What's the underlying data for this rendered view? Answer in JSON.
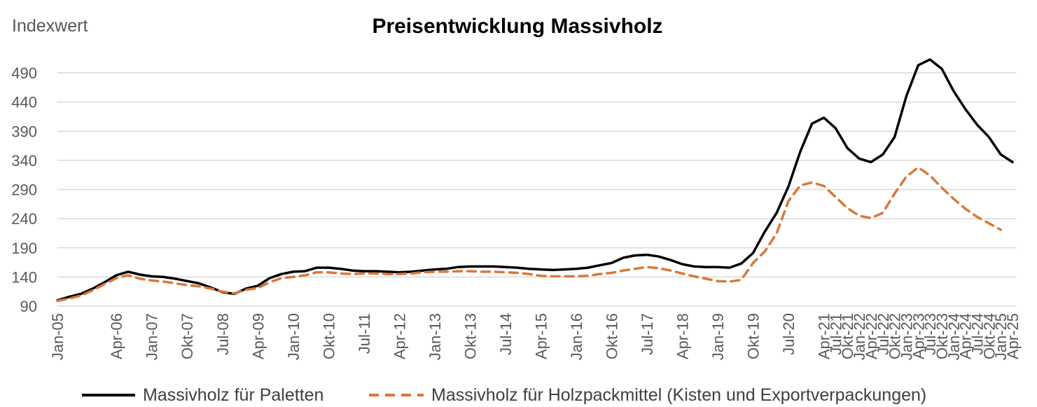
{
  "chart_data": {
    "type": "line",
    "title": "Preisentwicklung Massivholz",
    "ylabel": "Indexwert",
    "xlabel": "",
    "ylim": [
      90,
      490
    ],
    "yticks": [
      90,
      140,
      190,
      240,
      290,
      340,
      390,
      440,
      490
    ],
    "grid": true,
    "legend": "bottom",
    "x_tick_labels": [
      "Jan-05",
      "Apr-06",
      "Jan-07",
      "Okt-07",
      "Jul-08",
      "Apr-09",
      "Jan-10",
      "Okt-10",
      "Jul-11",
      "Apr-12",
      "Jan-13",
      "Okt-13",
      "Jul-14",
      "Apr-15",
      "Jan-16",
      "Okt-16",
      "Jul-17",
      "Apr-18",
      "Jan-19",
      "Okt-19",
      "Jul-20",
      "Apr-21",
      "Jul-21",
      "Okt-21",
      "Jan-22",
      "Apr-22",
      "Jul-22",
      "Okt-22",
      "Jan-23",
      "Apr-23",
      "Jul-23",
      "Okt-23",
      "Jan-24",
      "Apr-24",
      "Jul-24",
      "Okt-24",
      "Jan-25",
      "Apr-25"
    ],
    "series": [
      {
        "name": "Massivholz für Paletten",
        "color": "#000000",
        "style": "solid",
        "points": [
          [
            "Jan-05",
            100
          ],
          [
            "Apr-05",
            106
          ],
          [
            "Jul-05",
            111
          ],
          [
            "Okt-05",
            120
          ],
          [
            "Jan-06",
            131
          ],
          [
            "Apr-06",
            143
          ],
          [
            "Jul-06",
            149
          ],
          [
            "Okt-06",
            144
          ],
          [
            "Jan-07",
            141
          ],
          [
            "Apr-07",
            140
          ],
          [
            "Jul-07",
            137
          ],
          [
            "Okt-07",
            133
          ],
          [
            "Jan-08",
            129
          ],
          [
            "Apr-08",
            122
          ],
          [
            "Jul-08",
            114
          ],
          [
            "Okt-08",
            111
          ],
          [
            "Jan-09",
            120
          ],
          [
            "Apr-09",
            125
          ],
          [
            "Jul-09",
            138
          ],
          [
            "Okt-09",
            145
          ],
          [
            "Jan-10",
            149
          ],
          [
            "Apr-10",
            150
          ],
          [
            "Jul-10",
            156
          ],
          [
            "Okt-10",
            156
          ],
          [
            "Jan-11",
            154
          ],
          [
            "Apr-11",
            151
          ],
          [
            "Jul-11",
            150
          ],
          [
            "Okt-11",
            150
          ],
          [
            "Jan-12",
            149
          ],
          [
            "Apr-12",
            148
          ],
          [
            "Jul-12",
            149
          ],
          [
            "Okt-12",
            151
          ],
          [
            "Jan-13",
            153
          ],
          [
            "Apr-13",
            154
          ],
          [
            "Jul-13",
            157
          ],
          [
            "Okt-13",
            158
          ],
          [
            "Jan-14",
            158
          ],
          [
            "Apr-14",
            158
          ],
          [
            "Jul-14",
            157
          ],
          [
            "Okt-14",
            156
          ],
          [
            "Jan-15",
            154
          ],
          [
            "Apr-15",
            153
          ],
          [
            "Jul-15",
            152
          ],
          [
            "Okt-15",
            153
          ],
          [
            "Jan-16",
            154
          ],
          [
            "Apr-16",
            156
          ],
          [
            "Jul-16",
            160
          ],
          [
            "Okt-16",
            164
          ],
          [
            "Jan-17",
            173
          ],
          [
            "Apr-17",
            177
          ],
          [
            "Jul-17",
            178
          ],
          [
            "Okt-17",
            175
          ],
          [
            "Jan-18",
            169
          ],
          [
            "Apr-18",
            162
          ],
          [
            "Jul-18",
            158
          ],
          [
            "Okt-18",
            157
          ],
          [
            "Jan-19",
            157
          ],
          [
            "Apr-19",
            156
          ],
          [
            "Jul-19",
            163
          ],
          [
            "Okt-19",
            181
          ],
          [
            "Jan-20",
            218
          ],
          [
            "Apr-20",
            250
          ],
          [
            "Jul-20",
            295
          ],
          [
            "Okt-20",
            355
          ],
          [
            "Jan-21",
            403
          ],
          [
            "Apr-21",
            413
          ],
          [
            "Jul-21",
            395
          ],
          [
            "Okt-21",
            361
          ],
          [
            "Jan-22",
            343
          ],
          [
            "Apr-22",
            337
          ],
          [
            "Jul-22",
            350
          ],
          [
            "Okt-22",
            380
          ],
          [
            "Jan-23",
            450
          ],
          [
            "Apr-23",
            503
          ],
          [
            "Jul-23",
            513
          ],
          [
            "Okt-23",
            497
          ],
          [
            "Jan-24",
            459
          ],
          [
            "Apr-24",
            428
          ],
          [
            "Jul-24",
            401
          ],
          [
            "Okt-24",
            380
          ],
          [
            "Jan-25",
            350
          ],
          [
            "Apr-25",
            337
          ]
        ]
      },
      {
        "name": "Massivholz für Holzpackmittel (Kisten und Exportverpackungen)",
        "color": "#d9783a",
        "style": "dashed",
        "points": [
          [
            "Jan-05",
            99
          ],
          [
            "Apr-05",
            103
          ],
          [
            "Jul-05",
            108
          ],
          [
            "Okt-05",
            117
          ],
          [
            "Jan-06",
            128
          ],
          [
            "Apr-06",
            138
          ],
          [
            "Jul-06",
            143
          ],
          [
            "Okt-06",
            137
          ],
          [
            "Jan-07",
            134
          ],
          [
            "Apr-07",
            132
          ],
          [
            "Jul-07",
            129
          ],
          [
            "Okt-07",
            126
          ],
          [
            "Jan-08",
            124
          ],
          [
            "Apr-08",
            120
          ],
          [
            "Jul-08",
            115
          ],
          [
            "Okt-08",
            112
          ],
          [
            "Jan-09",
            118
          ],
          [
            "Apr-09",
            121
          ],
          [
            "Jul-09",
            131
          ],
          [
            "Okt-09",
            138
          ],
          [
            "Jan-10",
            140
          ],
          [
            "Apr-10",
            143
          ],
          [
            "Jul-10",
            148
          ],
          [
            "Okt-10",
            148
          ],
          [
            "Jan-11",
            146
          ],
          [
            "Apr-11",
            145
          ],
          [
            "Jul-11",
            146
          ],
          [
            "Okt-11",
            146
          ],
          [
            "Jan-12",
            145
          ],
          [
            "Apr-12",
            145
          ],
          [
            "Jul-12",
            146
          ],
          [
            "Okt-12",
            148
          ],
          [
            "Jan-13",
            149
          ],
          [
            "Apr-13",
            149
          ],
          [
            "Jul-13",
            150
          ],
          [
            "Okt-13",
            150
          ],
          [
            "Jan-14",
            149
          ],
          [
            "Apr-14",
            149
          ],
          [
            "Jul-14",
            148
          ],
          [
            "Okt-14",
            147
          ],
          [
            "Jan-15",
            145
          ],
          [
            "Apr-15",
            142
          ],
          [
            "Jul-15",
            141
          ],
          [
            "Okt-15",
            141
          ],
          [
            "Jan-16",
            141
          ],
          [
            "Apr-16",
            142
          ],
          [
            "Jul-16",
            145
          ],
          [
            "Okt-16",
            147
          ],
          [
            "Jan-17",
            151
          ],
          [
            "Apr-17",
            154
          ],
          [
            "Jul-17",
            157
          ],
          [
            "Okt-17",
            155
          ],
          [
            "Jan-18",
            151
          ],
          [
            "Apr-18",
            146
          ],
          [
            "Jul-18",
            141
          ],
          [
            "Okt-18",
            137
          ],
          [
            "Jan-19",
            133
          ],
          [
            "Apr-19",
            132
          ],
          [
            "Jul-19",
            135
          ],
          [
            "Okt-19",
            164
          ],
          [
            "Jan-20",
            184
          ],
          [
            "Apr-20",
            215
          ],
          [
            "Jul-20",
            270
          ],
          [
            "Okt-20",
            297
          ],
          [
            "Jan-21",
            302
          ],
          [
            "Apr-21",
            296
          ],
          [
            "Jul-21",
            277
          ],
          [
            "Okt-21",
            258
          ],
          [
            "Jan-22",
            245
          ],
          [
            "Apr-22",
            241
          ],
          [
            "Jul-22",
            250
          ],
          [
            "Okt-22",
            283
          ],
          [
            "Jan-23",
            312
          ],
          [
            "Apr-23",
            328
          ],
          [
            "Jul-23",
            314
          ],
          [
            "Okt-23",
            293
          ],
          [
            "Jan-24",
            274
          ],
          [
            "Apr-24",
            257
          ],
          [
            "Jul-24",
            243
          ],
          [
            "Okt-24",
            232
          ],
          [
            "Jan-25",
            221
          ]
        ]
      }
    ]
  }
}
